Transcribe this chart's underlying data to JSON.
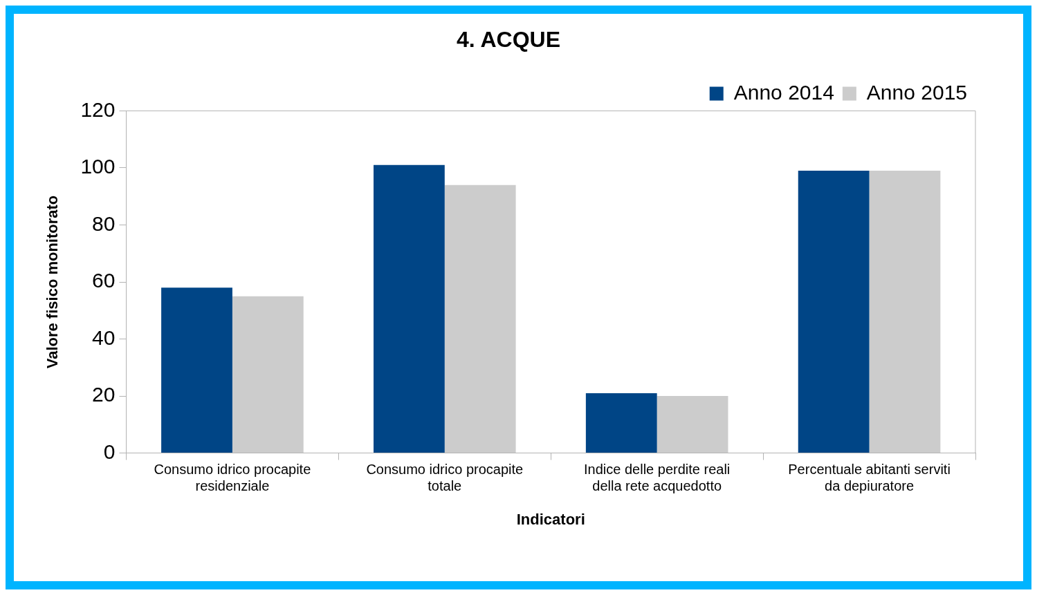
{
  "chart_data": {
    "type": "bar",
    "title": "4. ACQUE",
    "xlabel": "Indicatori",
    "ylabel": "Valore fisico monitorato",
    "categories": [
      "Consumo idrico procapite residenziale",
      "Consumo idrico procapite totale",
      "Indice delle perdite reali della rete acquedotto",
      "Percentuale abitanti serviti da depiuratore"
    ],
    "series": [
      {
        "name": "Anno 2014",
        "color": "#004586",
        "values": [
          58,
          101,
          21,
          99
        ]
      },
      {
        "name": "Anno 2015",
        "color": "#cccccc",
        "values": [
          55,
          94,
          20,
          99
        ]
      }
    ],
    "ylim": [
      0,
      120
    ],
    "yticks": [
      0,
      20,
      40,
      60,
      80,
      100,
      120
    ],
    "grid": false,
    "legend": "top right"
  }
}
